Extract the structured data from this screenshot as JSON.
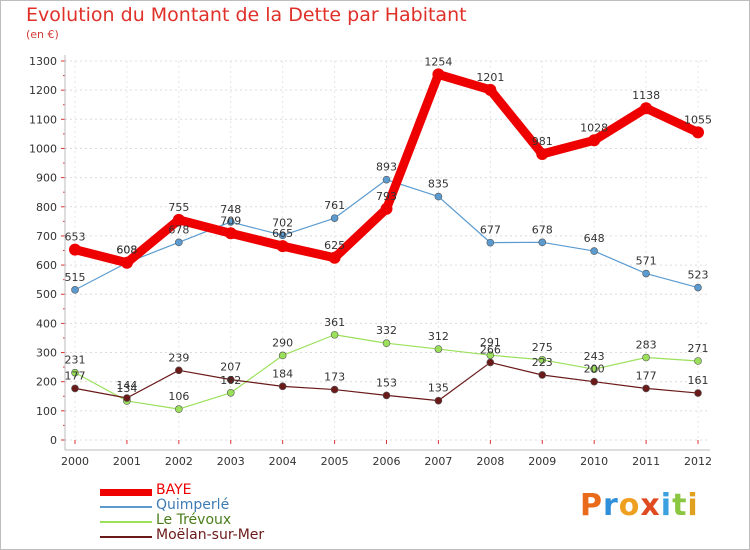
{
  "title": "Evolution du Montant de la Dette par Habitant",
  "unit": "(en €)",
  "logo": "Proxiti",
  "chart_data": {
    "type": "line",
    "title": "Evolution du Montant de la Dette par Habitant",
    "ylabel": "(en €)",
    "x": [
      "2000",
      "2001",
      "2002",
      "2003",
      "2004",
      "2005",
      "2006",
      "2007",
      "2008",
      "2009",
      "2010",
      "2011",
      "2012"
    ],
    "ylim": [
      0,
      1300
    ],
    "yticks": [
      0,
      100,
      200,
      300,
      400,
      500,
      600,
      700,
      800,
      900,
      1000,
      1100,
      1200,
      1300
    ],
    "grid": true,
    "legend_position": "bottom-left",
    "series": [
      {
        "name": "BAYE",
        "color": "#ee0000",
        "values": [
          653,
          608,
          755,
          709,
          665,
          625,
          793,
          1254,
          1201,
          981,
          1028,
          1138,
          1055
        ]
      },
      {
        "name": "Quimperlé",
        "color": "#5b9bd0",
        "values": [
          515,
          608,
          678,
          748,
          702,
          761,
          893,
          835,
          677,
          678,
          648,
          571,
          523
        ]
      },
      {
        "name": "Le Trévoux",
        "color": "#9be05a",
        "values": [
          231,
          134,
          106,
          162,
          290,
          361,
          332,
          312,
          291,
          275,
          243,
          283,
          271
        ]
      },
      {
        "name": "Moëlan-sur-Mer",
        "color": "#6b1a1a",
        "values": [
          177,
          144,
          239,
          207,
          184,
          173,
          153,
          135,
          266,
          223,
          200,
          177,
          161
        ]
      }
    ]
  }
}
